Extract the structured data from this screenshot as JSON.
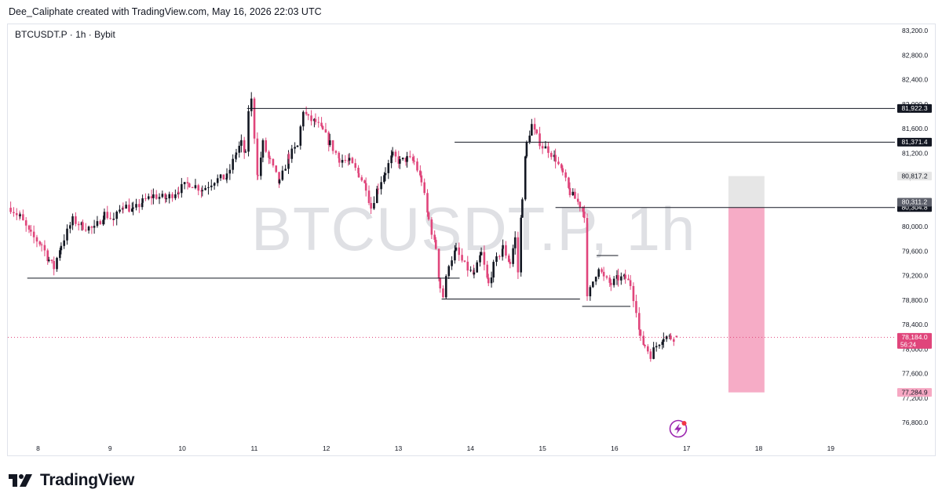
{
  "header": {
    "caption": "Dee_Caliphate created with TradingView.com, May 16, 2026 22:03 UTC"
  },
  "symbol": {
    "label": "BTCUSDT.P · 1h · Bybit"
  },
  "watermark": {
    "text": "BTCUSDT.P, 1h"
  },
  "footer": {
    "brand": "TradingView",
    "logo_icon": "tradingview-logo-icon"
  },
  "colors": {
    "up": "#131722",
    "down": "#e0457b",
    "level_line": "#131722",
    "price_line": "#e0457b",
    "target_zone": "#f6a8c3",
    "entry_zone": "#e6e6e6"
  },
  "chart_data": {
    "type": "candlestick",
    "title": "",
    "xlabel": "",
    "ylabel": "",
    "x_tick_labels": [
      "8",
      "9",
      "10",
      "11",
      "12",
      "13",
      "14",
      "15",
      "16",
      "17",
      "18",
      "19"
    ],
    "y_tick_labels": [
      "83,200.0",
      "82,800.0",
      "82,400.0",
      "82,000.0",
      "81,600.0",
      "81,200.0",
      "80,800.0",
      "80,400.0",
      "80,000.0",
      "79,600.0",
      "79,200.0",
      "78,800.0",
      "78,400.0",
      "78,000.0",
      "77,600.0",
      "77,200.0",
      "76,800.0"
    ],
    "y_ticks": [
      83200,
      82800,
      82400,
      82000,
      81600,
      81200,
      80800,
      80400,
      80000,
      79600,
      79200,
      78800,
      78400,
      78000,
      77600,
      77200,
      76800
    ],
    "ylim": [
      76560,
      83400
    ],
    "x_range_days": [
      7.6,
      19.9
    ],
    "grid": false,
    "close_series": [
      [
        7.62,
        80300
      ],
      [
        7.75,
        80150
      ],
      [
        7.9,
        79850
      ],
      [
        8.05,
        79700
      ],
      [
        8.15,
        79450
      ],
      [
        8.22,
        79320
      ],
      [
        8.32,
        79700
      ],
      [
        8.48,
        80100
      ],
      [
        8.62,
        80000
      ],
      [
        8.78,
        79950
      ],
      [
        8.92,
        80200
      ],
      [
        9.05,
        80100
      ],
      [
        9.18,
        80350
      ],
      [
        9.32,
        80250
      ],
      [
        9.45,
        80400
      ],
      [
        9.6,
        80500
      ],
      [
        9.78,
        80450
      ],
      [
        9.95,
        80600
      ],
      [
        10.1,
        80700
      ],
      [
        10.28,
        80600
      ],
      [
        10.45,
        80750
      ],
      [
        10.62,
        80800
      ],
      [
        10.75,
        81200
      ],
      [
        10.82,
        81350
      ],
      [
        10.88,
        81150
      ],
      [
        10.92,
        81900
      ],
      [
        10.96,
        82050
      ],
      [
        11.05,
        80800
      ],
      [
        11.12,
        81350
      ],
      [
        11.22,
        81050
      ],
      [
        11.35,
        80700
      ],
      [
        11.48,
        81150
      ],
      [
        11.6,
        81300
      ],
      [
        11.68,
        81900
      ],
      [
        11.75,
        81750
      ],
      [
        11.85,
        81700
      ],
      [
        11.95,
        81550
      ],
      [
        12.05,
        81350
      ],
      [
        12.18,
        81100
      ],
      [
        12.32,
        81050
      ],
      [
        12.45,
        80850
      ],
      [
        12.55,
        80650
      ],
      [
        12.62,
        80300
      ],
      [
        12.72,
        80650
      ],
      [
        12.82,
        80900
      ],
      [
        12.92,
        81150
      ],
      [
        13.02,
        81050
      ],
      [
        13.12,
        81100
      ],
      [
        13.22,
        81050
      ],
      [
        13.32,
        80750
      ],
      [
        13.42,
        80100
      ],
      [
        13.52,
        79650
      ],
      [
        13.58,
        79000
      ],
      [
        13.62,
        78850
      ],
      [
        13.7,
        79400
      ],
      [
        13.8,
        79600
      ],
      [
        13.92,
        79350
      ],
      [
        14.05,
        79200
      ],
      [
        14.15,
        79550
      ],
      [
        14.25,
        79050
      ],
      [
        14.32,
        79350
      ],
      [
        14.45,
        79650
      ],
      [
        14.55,
        79400
      ],
      [
        14.62,
        79800
      ],
      [
        14.66,
        79250
      ],
      [
        14.72,
        80500
      ],
      [
        14.78,
        81350
      ],
      [
        14.85,
        81650
      ],
      [
        14.92,
        81450
      ],
      [
        15.0,
        81300
      ],
      [
        15.08,
        81250
      ],
      [
        15.18,
        81100
      ],
      [
        15.28,
        80850
      ],
      [
        15.38,
        80550
      ],
      [
        15.45,
        80450
      ],
      [
        15.52,
        80350
      ],
      [
        15.58,
        80200
      ],
      [
        15.62,
        78800
      ],
      [
        15.7,
        79100
      ],
      [
        15.78,
        79350
      ],
      [
        15.85,
        79150
      ],
      [
        15.95,
        79050
      ],
      [
        16.05,
        79150
      ],
      [
        16.15,
        79150
      ],
      [
        16.22,
        79050
      ],
      [
        16.3,
        78650
      ],
      [
        16.36,
        78150
      ],
      [
        16.42,
        78050
      ],
      [
        16.5,
        77900
      ],
      [
        16.58,
        78050
      ],
      [
        16.68,
        78200
      ],
      [
        16.78,
        78180
      ],
      [
        16.86,
        78184
      ]
    ],
    "horizontal_levels": [
      {
        "price": 81922.3,
        "x_start": 10.9,
        "label": "81,922.3"
      },
      {
        "price": 81371.4,
        "x_start": 13.78,
        "label": "81,371.4"
      },
      {
        "price": 80304.8,
        "x_start": 15.18,
        "label": "80,304.8"
      },
      {
        "price": 79150,
        "x_start": 7.85,
        "x_end": 13.85
      },
      {
        "price": 78810,
        "x_start": 13.6,
        "x_end": 15.52
      },
      {
        "price": 78690,
        "x_start": 15.55,
        "x_end": 16.22
      },
      {
        "price": 79520,
        "x_start": 15.75,
        "x_end": 16.05
      }
    ],
    "price_line": {
      "price": 78184.0,
      "label": "78,184.0",
      "countdown": "56:24"
    },
    "price_labels": [
      {
        "price": 80817.2,
        "label": "80,817.2",
        "style": "light"
      },
      {
        "price": 80311.2,
        "label": "80,311.2",
        "style": "gray"
      },
      {
        "price": 77284.9,
        "label": "77,284.9",
        "style": "pink"
      }
    ],
    "position_zones": [
      {
        "kind": "entry",
        "x_start": 17.58,
        "x_end": 18.08,
        "top": 80817.2,
        "bottom": 80311.2
      },
      {
        "kind": "target",
        "x_start": 17.58,
        "x_end": 18.08,
        "top": 80304.8,
        "bottom": 77284.9
      }
    ]
  }
}
